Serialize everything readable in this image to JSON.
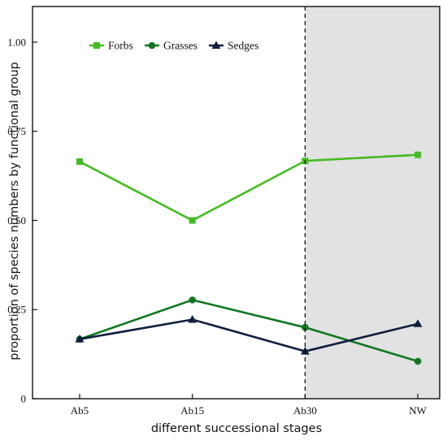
{
  "chart_data": {
    "type": "line",
    "categories": [
      "Ab5",
      "Ab15",
      "Ab30",
      "NW"
    ],
    "series": [
      {
        "name": "Forbs",
        "values": [
          0.665,
          0.5,
          0.667,
          0.684
        ],
        "color": "#44bb22",
        "marker": "square"
      },
      {
        "name": "Grasses",
        "values": [
          0.167,
          0.277,
          0.2,
          0.105
        ],
        "color": "#117722",
        "marker": "circle"
      },
      {
        "name": "Sedges",
        "values": [
          0.167,
          0.222,
          0.133,
          0.21
        ],
        "color": "#0f1f3d",
        "marker": "triangle"
      }
    ],
    "xlabel": "different successional stages",
    "ylabel": "proportion of species numbers by functional group",
    "ylim": [
      0,
      1.1
    ],
    "yticks": [
      "0",
      "0.25",
      "0.50",
      "0.75",
      "1.00"
    ],
    "ytick_values": [
      0,
      0.25,
      0.5,
      0.75,
      1.0
    ],
    "divider_after_category": "Ab30",
    "shaded_region": {
      "from": "Ab30",
      "to": "NW",
      "color": "#e2e2e2"
    },
    "grid": false,
    "legend_position": "top-left"
  }
}
